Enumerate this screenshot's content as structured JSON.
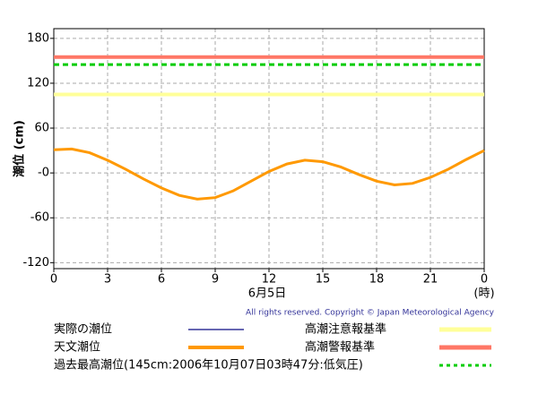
{
  "chart_data": {
    "type": "line",
    "ylabel": "潮位 (cm)",
    "xlabel": "6月5日",
    "xunit": "(時)",
    "copyright": "All rights reserved. Copyright © Japan Meteorological Agency",
    "x": [
      0,
      1,
      2,
      3,
      4,
      5,
      6,
      7,
      8,
      9,
      10,
      11,
      12,
      13,
      14,
      15,
      16,
      17,
      18,
      19,
      20,
      21,
      22,
      23,
      24
    ],
    "xlim": [
      0,
      24
    ],
    "xticks": [
      0,
      3,
      6,
      9,
      12,
      15,
      18,
      21,
      {
        "value": 24,
        "label": "0"
      }
    ],
    "ylim": [
      -128,
      193
    ],
    "yticks": [
      180,
      120,
      60,
      {
        "value": 0,
        "label": "-0"
      },
      -60,
      -120
    ],
    "grid": true,
    "series": [
      {
        "name": "実際の潮位",
        "color": "#333399",
        "values": [
          null,
          null,
          null,
          null,
          null,
          null,
          null,
          null,
          null,
          null,
          null,
          null,
          null,
          null,
          null,
          null,
          null,
          null,
          null,
          null,
          null,
          null,
          null,
          null,
          null
        ]
      },
      {
        "name": "天文潮位",
        "color": "#ff9900",
        "values": [
          31,
          32,
          27,
          17,
          5,
          -8,
          -20,
          -30,
          -35,
          -33,
          -24,
          -11,
          2,
          12,
          17,
          15,
          8,
          -2,
          -11,
          -16,
          -14,
          -6,
          5,
          18,
          30
        ]
      }
    ],
    "reference_lines": [
      {
        "name": "高潮注意報基準",
        "value": 105,
        "color": "#ffff99",
        "dashed": false
      },
      {
        "name": "高潮警報基準",
        "value": 155,
        "color": "#ff7766",
        "dashed": false
      },
      {
        "name": "過去最高潮位(145cm:2006年10月07日03時47分:低気圧)",
        "value": 145,
        "color": "#00cc00",
        "dashed": true
      }
    ]
  }
}
